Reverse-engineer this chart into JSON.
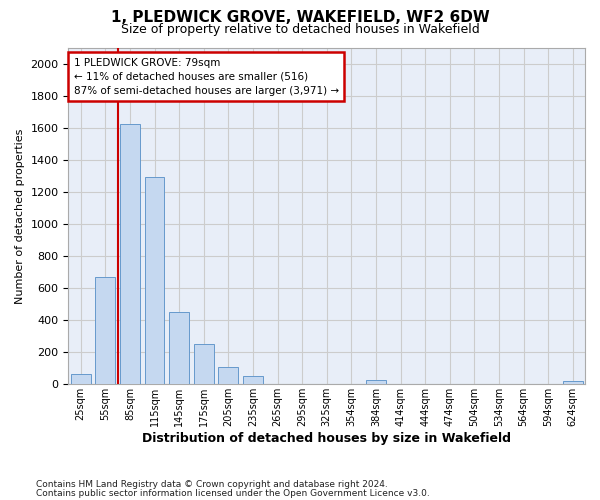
{
  "title": "1, PLEDWICK GROVE, WAKEFIELD, WF2 6DW",
  "subtitle": "Size of property relative to detached houses in Wakefield",
  "xlabel": "Distribution of detached houses by size in Wakefield",
  "ylabel": "Number of detached properties",
  "categories": [
    "25sqm",
    "55sqm",
    "85sqm",
    "115sqm",
    "145sqm",
    "175sqm",
    "205sqm",
    "235sqm",
    "265sqm",
    "295sqm",
    "325sqm",
    "354sqm",
    "384sqm",
    "414sqm",
    "444sqm",
    "474sqm",
    "504sqm",
    "534sqm",
    "564sqm",
    "594sqm",
    "624sqm"
  ],
  "values": [
    65,
    670,
    1620,
    1290,
    450,
    250,
    105,
    50,
    0,
    0,
    0,
    0,
    25,
    0,
    0,
    0,
    0,
    0,
    0,
    0,
    20
  ],
  "bar_color": "#c5d8f0",
  "bar_edge_color": "#6699cc",
  "annotation_line1": "1 PLEDWICK GROVE: 79sqm",
  "annotation_line2": "← 11% of detached houses are smaller (516)",
  "annotation_line3": "87% of semi-detached houses are larger (3,971) →",
  "annotation_box_color": "#ffffff",
  "annotation_box_edge": "#cc0000",
  "vline_color": "#cc0000",
  "footnote1": "Contains HM Land Registry data © Crown copyright and database right 2024.",
  "footnote2": "Contains public sector information licensed under the Open Government Licence v3.0.",
  "ylim": [
    0,
    2100
  ],
  "yticks": [
    0,
    200,
    400,
    600,
    800,
    1000,
    1200,
    1400,
    1600,
    1800,
    2000
  ],
  "grid_color": "#cccccc",
  "bg_color": "#e8eef8",
  "title_fontsize": 11,
  "subtitle_fontsize": 9,
  "ylabel_fontsize": 8,
  "xlabel_fontsize": 9,
  "tick_fontsize": 8,
  "xtick_fontsize": 7,
  "footnote_fontsize": 6.5
}
